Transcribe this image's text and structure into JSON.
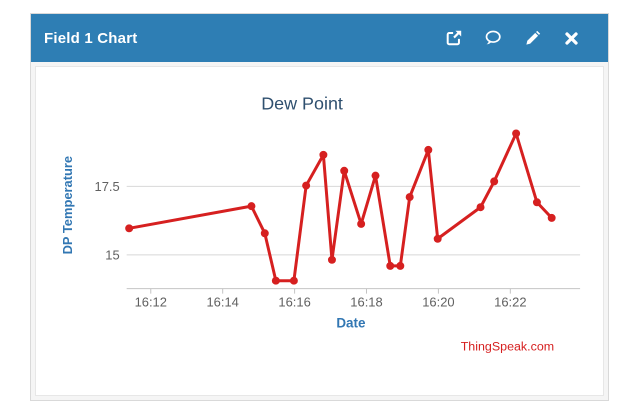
{
  "widget": {
    "title": "Field 1 Chart",
    "actions": [
      {
        "label": "open-external",
        "icon": "external-link-icon"
      },
      {
        "label": "comments",
        "icon": "comment-icon"
      },
      {
        "label": "edit",
        "icon": "pencil-icon"
      },
      {
        "label": "close",
        "icon": "close-icon"
      }
    ]
  },
  "colors": {
    "header_bg": "#2e7eb4",
    "header_text": "#ffffff",
    "chart_title": "#2f506f",
    "axis_title": "#3277b3",
    "tick_label": "#606060",
    "gridline": "#d8d8d8",
    "axis_line": "#c4c4c4",
    "series_line": "#d62020",
    "watermark": "#d62020"
  },
  "chart_data": {
    "type": "line",
    "title": "Dew Point",
    "xlabel": "Date",
    "ylabel": "DP Temperature",
    "watermark": "ThingSpeak.com",
    "x_unit": "minutes after 16:00",
    "xlim": [
      11.33,
      23.94
    ],
    "ylim": [
      13.77,
      19.86
    ],
    "grid": "horizontal-only",
    "legend": "none",
    "x_ticks": [
      {
        "t": 12,
        "label": "16:12"
      },
      {
        "t": 14,
        "label": "16:14"
      },
      {
        "t": 16,
        "label": "16:16"
      },
      {
        "t": 18,
        "label": "16:18"
      },
      {
        "t": 20,
        "label": "16:20"
      },
      {
        "t": 22,
        "label": "16:22"
      }
    ],
    "y_ticks": [
      {
        "v": 15,
        "label": "15"
      },
      {
        "v": 17.5,
        "label": "17.5"
      }
    ],
    "series": [
      {
        "name": "Dew Point",
        "points": [
          {
            "t": 11.4,
            "v": 15.97
          },
          {
            "t": 14.8,
            "v": 16.78
          },
          {
            "t": 15.17,
            "v": 15.79
          },
          {
            "t": 15.48,
            "v": 14.06
          },
          {
            "t": 15.98,
            "v": 14.06
          },
          {
            "t": 16.32,
            "v": 17.53
          },
          {
            "t": 16.8,
            "v": 18.65
          },
          {
            "t": 17.04,
            "v": 14.82
          },
          {
            "t": 17.38,
            "v": 18.07
          },
          {
            "t": 17.85,
            "v": 16.13
          },
          {
            "t": 18.25,
            "v": 17.89
          },
          {
            "t": 18.66,
            "v": 14.6
          },
          {
            "t": 18.94,
            "v": 14.6
          },
          {
            "t": 19.2,
            "v": 17.11
          },
          {
            "t": 19.72,
            "v": 18.83
          },
          {
            "t": 19.98,
            "v": 15.59
          },
          {
            "t": 21.17,
            "v": 16.74
          },
          {
            "t": 21.55,
            "v": 17.68
          },
          {
            "t": 22.16,
            "v": 19.43
          },
          {
            "t": 22.74,
            "v": 16.92
          },
          {
            "t": 23.15,
            "v": 16.35
          }
        ]
      }
    ]
  }
}
